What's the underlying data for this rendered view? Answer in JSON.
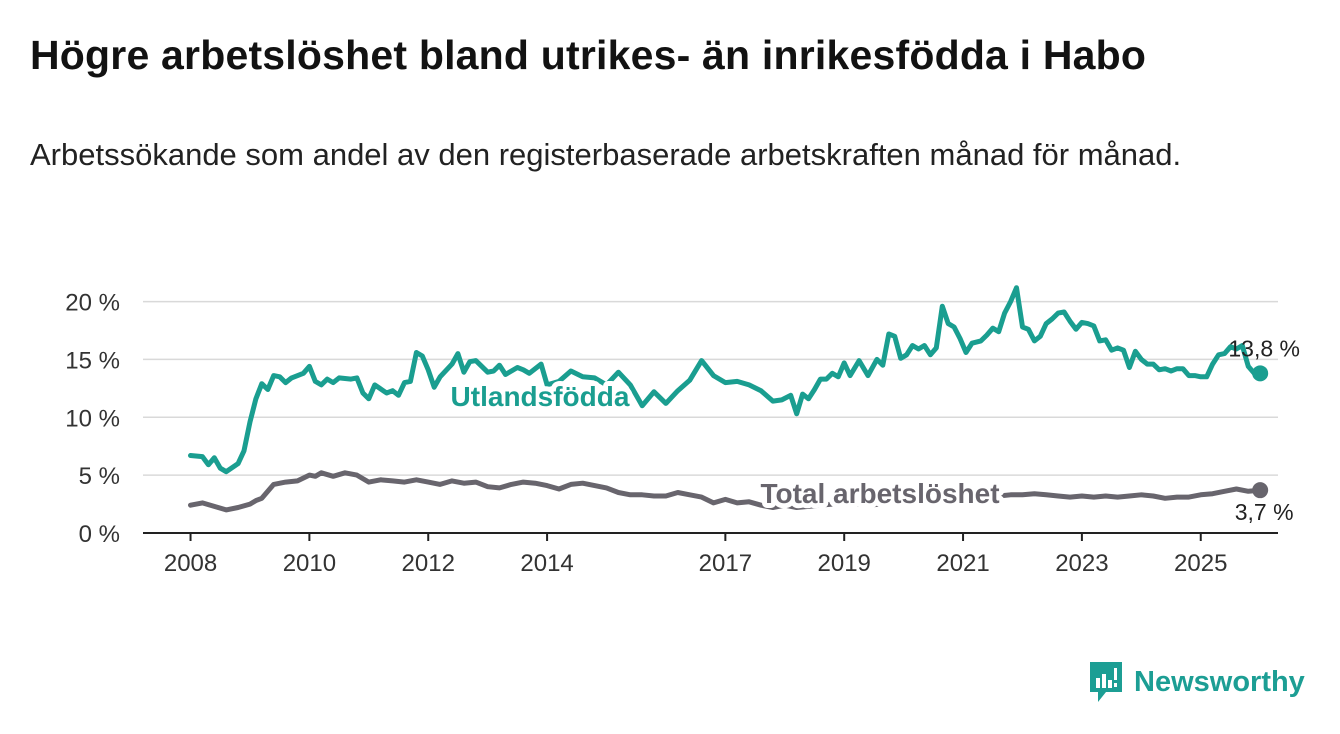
{
  "title": "Högre arbetslöshet bland utrikes- än inrikesfödda i Habo",
  "subtitle": "Arbetssökande som andel av den registerbaserade arbetskraften månad för månad.",
  "brand": {
    "name": "Newsworthy",
    "icon": "newsworthy-logo-icon",
    "color": "#1c9e94"
  },
  "chart_data": {
    "type": "line",
    "y_ticks": [
      "0 %",
      "5 %",
      "10 %",
      "15 %",
      "20 %"
    ],
    "y_tick_values": [
      0,
      5,
      10,
      15,
      20
    ],
    "x_ticks": [
      "2008",
      "2010",
      "2012",
      "2014",
      "2017",
      "2019",
      "2021",
      "2023",
      "2025"
    ],
    "x_tick_values": [
      2008,
      2010,
      2012,
      2014,
      2017,
      2019,
      2021,
      2023,
      2025
    ],
    "xlim": [
      2007.2,
      2026.3
    ],
    "ylim": [
      0,
      21
    ],
    "grid": true,
    "series": [
      {
        "name": "Utlandsfödda",
        "color": "#1a9e90",
        "end_label": "13,8 %",
        "points": [
          [
            2008.0,
            6.7
          ],
          [
            2008.2,
            6.6
          ],
          [
            2008.3,
            5.9
          ],
          [
            2008.4,
            6.5
          ],
          [
            2008.5,
            5.6
          ],
          [
            2008.6,
            5.3
          ],
          [
            2008.8,
            6.0
          ],
          [
            2008.9,
            7.1
          ],
          [
            2009.0,
            9.6
          ],
          [
            2009.1,
            11.6
          ],
          [
            2009.2,
            12.9
          ],
          [
            2009.3,
            12.4
          ],
          [
            2009.4,
            13.6
          ],
          [
            2009.5,
            13.5
          ],
          [
            2009.6,
            13.0
          ],
          [
            2009.7,
            13.4
          ],
          [
            2009.9,
            13.8
          ],
          [
            2010.0,
            14.4
          ],
          [
            2010.1,
            13.1
          ],
          [
            2010.2,
            12.8
          ],
          [
            2010.3,
            13.3
          ],
          [
            2010.4,
            13.0
          ],
          [
            2010.5,
            13.4
          ],
          [
            2010.7,
            13.3
          ],
          [
            2010.8,
            13.4
          ],
          [
            2010.9,
            12.1
          ],
          [
            2011.0,
            11.6
          ],
          [
            2011.1,
            12.8
          ],
          [
            2011.3,
            12.1
          ],
          [
            2011.4,
            12.3
          ],
          [
            2011.5,
            11.9
          ],
          [
            2011.6,
            13.0
          ],
          [
            2011.7,
            13.1
          ],
          [
            2011.8,
            15.6
          ],
          [
            2011.9,
            15.3
          ],
          [
            2012.0,
            14.1
          ],
          [
            2012.1,
            12.6
          ],
          [
            2012.2,
            13.5
          ],
          [
            2012.4,
            14.6
          ],
          [
            2012.5,
            15.5
          ],
          [
            2012.6,
            13.9
          ],
          [
            2012.7,
            14.8
          ],
          [
            2012.8,
            14.9
          ],
          [
            2013.0,
            13.9
          ],
          [
            2013.1,
            14.0
          ],
          [
            2013.2,
            14.5
          ],
          [
            2013.3,
            13.7
          ],
          [
            2013.5,
            14.3
          ],
          [
            2013.6,
            14.1
          ],
          [
            2013.7,
            13.8
          ],
          [
            2013.9,
            14.6
          ],
          [
            2014.0,
            12.8
          ],
          [
            2014.2,
            13.1
          ],
          [
            2014.4,
            14.0
          ],
          [
            2014.6,
            13.5
          ],
          [
            2014.8,
            13.4
          ],
          [
            2015.0,
            12.8
          ],
          [
            2015.2,
            13.9
          ],
          [
            2015.4,
            12.8
          ],
          [
            2015.6,
            11.0
          ],
          [
            2015.8,
            12.2
          ],
          [
            2016.0,
            11.2
          ],
          [
            2016.2,
            12.3
          ],
          [
            2016.4,
            13.2
          ],
          [
            2016.6,
            14.9
          ],
          [
            2016.8,
            13.6
          ],
          [
            2017.0,
            13.0
          ],
          [
            2017.2,
            13.1
          ],
          [
            2017.4,
            12.8
          ],
          [
            2017.6,
            12.3
          ],
          [
            2017.8,
            11.4
          ],
          [
            2017.95,
            11.5
          ],
          [
            2018.1,
            11.9
          ],
          [
            2018.2,
            10.3
          ],
          [
            2018.3,
            12.0
          ],
          [
            2018.4,
            11.6
          ],
          [
            2018.5,
            12.4
          ],
          [
            2018.6,
            13.3
          ],
          [
            2018.7,
            13.3
          ],
          [
            2018.8,
            13.8
          ],
          [
            2018.9,
            13.5
          ],
          [
            2019.0,
            14.7
          ],
          [
            2019.1,
            13.6
          ],
          [
            2019.25,
            14.9
          ],
          [
            2019.4,
            13.6
          ],
          [
            2019.55,
            15.0
          ],
          [
            2019.65,
            14.5
          ],
          [
            2019.75,
            17.2
          ],
          [
            2019.85,
            17.0
          ],
          [
            2019.95,
            15.1
          ],
          [
            2020.05,
            15.4
          ],
          [
            2020.15,
            16.2
          ],
          [
            2020.25,
            15.9
          ],
          [
            2020.35,
            16.2
          ],
          [
            2020.45,
            15.4
          ],
          [
            2020.55,
            16.0
          ],
          [
            2020.65,
            19.6
          ],
          [
            2020.75,
            18.1
          ],
          [
            2020.85,
            17.8
          ],
          [
            2020.95,
            16.8
          ],
          [
            2021.05,
            15.6
          ],
          [
            2021.15,
            16.4
          ],
          [
            2021.3,
            16.6
          ],
          [
            2021.4,
            17.1
          ],
          [
            2021.5,
            17.7
          ],
          [
            2021.6,
            17.4
          ],
          [
            2021.7,
            19.0
          ],
          [
            2021.8,
            20.0
          ],
          [
            2021.9,
            21.2
          ],
          [
            2022.0,
            17.8
          ],
          [
            2022.1,
            17.6
          ],
          [
            2022.2,
            16.6
          ],
          [
            2022.3,
            17.0
          ],
          [
            2022.4,
            18.1
          ],
          [
            2022.5,
            18.5
          ],
          [
            2022.6,
            19.0
          ],
          [
            2022.7,
            19.1
          ],
          [
            2022.8,
            18.3
          ],
          [
            2022.9,
            17.6
          ],
          [
            2023.0,
            18.2
          ],
          [
            2023.1,
            18.1
          ],
          [
            2023.2,
            17.9
          ],
          [
            2023.3,
            16.6
          ],
          [
            2023.4,
            16.7
          ],
          [
            2023.5,
            15.8
          ],
          [
            2023.6,
            16.0
          ],
          [
            2023.7,
            15.8
          ],
          [
            2023.8,
            14.3
          ],
          [
            2023.9,
            15.7
          ],
          [
            2024.0,
            15.0
          ],
          [
            2024.1,
            14.6
          ],
          [
            2024.2,
            14.6
          ],
          [
            2024.3,
            14.1
          ],
          [
            2024.4,
            14.2
          ],
          [
            2024.5,
            14.0
          ],
          [
            2024.6,
            14.2
          ],
          [
            2024.7,
            14.2
          ],
          [
            2024.8,
            13.6
          ],
          [
            2024.9,
            13.6
          ],
          [
            2025.0,
            13.5
          ],
          [
            2025.1,
            13.5
          ],
          [
            2025.2,
            14.6
          ],
          [
            2025.3,
            15.4
          ],
          [
            2025.4,
            15.5
          ],
          [
            2025.5,
            16.1
          ],
          [
            2025.6,
            15.9
          ],
          [
            2025.7,
            16.2
          ],
          [
            2025.8,
            14.4
          ],
          [
            2025.9,
            13.8
          ],
          [
            2026.0,
            13.8
          ]
        ]
      },
      {
        "name": "Total arbetslöshet",
        "color": "#68656d",
        "end_label": "3,7 %",
        "points": [
          [
            2008.0,
            2.4
          ],
          [
            2008.2,
            2.6
          ],
          [
            2008.4,
            2.3
          ],
          [
            2008.6,
            2.0
          ],
          [
            2008.8,
            2.2
          ],
          [
            2009.0,
            2.5
          ],
          [
            2009.1,
            2.8
          ],
          [
            2009.2,
            3.0
          ],
          [
            2009.3,
            3.6
          ],
          [
            2009.4,
            4.2
          ],
          [
            2009.6,
            4.4
          ],
          [
            2009.8,
            4.5
          ],
          [
            2010.0,
            5.0
          ],
          [
            2010.1,
            4.9
          ],
          [
            2010.2,
            5.2
          ],
          [
            2010.4,
            4.9
          ],
          [
            2010.6,
            5.2
          ],
          [
            2010.8,
            5.0
          ],
          [
            2011.0,
            4.4
          ],
          [
            2011.2,
            4.6
          ],
          [
            2011.4,
            4.5
          ],
          [
            2011.6,
            4.4
          ],
          [
            2011.8,
            4.6
          ],
          [
            2012.0,
            4.4
          ],
          [
            2012.2,
            4.2
          ],
          [
            2012.4,
            4.5
          ],
          [
            2012.6,
            4.3
          ],
          [
            2012.8,
            4.4
          ],
          [
            2013.0,
            4.0
          ],
          [
            2013.2,
            3.9
          ],
          [
            2013.4,
            4.2
          ],
          [
            2013.6,
            4.4
          ],
          [
            2013.8,
            4.3
          ],
          [
            2014.0,
            4.1
          ],
          [
            2014.2,
            3.8
          ],
          [
            2014.4,
            4.2
          ],
          [
            2014.6,
            4.3
          ],
          [
            2014.8,
            4.1
          ],
          [
            2015.0,
            3.9
          ],
          [
            2015.2,
            3.5
          ],
          [
            2015.4,
            3.3
          ],
          [
            2015.6,
            3.3
          ],
          [
            2015.8,
            3.2
          ],
          [
            2016.0,
            3.2
          ],
          [
            2016.2,
            3.5
          ],
          [
            2016.4,
            3.3
          ],
          [
            2016.6,
            3.1
          ],
          [
            2016.8,
            2.6
          ],
          [
            2017.0,
            2.9
          ],
          [
            2017.2,
            2.6
          ],
          [
            2017.4,
            2.7
          ],
          [
            2017.6,
            2.4
          ],
          [
            2017.8,
            2.2
          ],
          [
            2018.0,
            2.4
          ],
          [
            2018.2,
            2.2
          ],
          [
            2018.4,
            2.3
          ],
          [
            2018.6,
            2.4
          ],
          [
            2018.8,
            2.5
          ],
          [
            2019.0,
            2.6
          ],
          [
            2019.2,
            2.5
          ],
          [
            2019.4,
            2.4
          ],
          [
            2019.6,
            2.5
          ],
          [
            2019.8,
            2.6
          ],
          [
            2020.0,
            2.5
          ],
          [
            2020.2,
            2.7
          ],
          [
            2020.4,
            2.9
          ],
          [
            2020.6,
            3.0
          ],
          [
            2020.8,
            3.1
          ],
          [
            2021.0,
            3.2
          ],
          [
            2021.2,
            3.3
          ],
          [
            2021.4,
            3.3
          ],
          [
            2021.6,
            3.2
          ],
          [
            2021.8,
            3.3
          ],
          [
            2022.0,
            3.3
          ],
          [
            2022.2,
            3.4
          ],
          [
            2022.4,
            3.3
          ],
          [
            2022.6,
            3.2
          ],
          [
            2022.8,
            3.1
          ],
          [
            2023.0,
            3.2
          ],
          [
            2023.2,
            3.1
          ],
          [
            2023.4,
            3.2
          ],
          [
            2023.6,
            3.1
          ],
          [
            2023.8,
            3.2
          ],
          [
            2024.0,
            3.3
          ],
          [
            2024.2,
            3.2
          ],
          [
            2024.4,
            3.0
          ],
          [
            2024.6,
            3.1
          ],
          [
            2024.8,
            3.1
          ],
          [
            2025.0,
            3.3
          ],
          [
            2025.2,
            3.4
          ],
          [
            2025.4,
            3.6
          ],
          [
            2025.6,
            3.8
          ],
          [
            2025.8,
            3.6
          ],
          [
            2026.0,
            3.7
          ]
        ]
      }
    ]
  }
}
